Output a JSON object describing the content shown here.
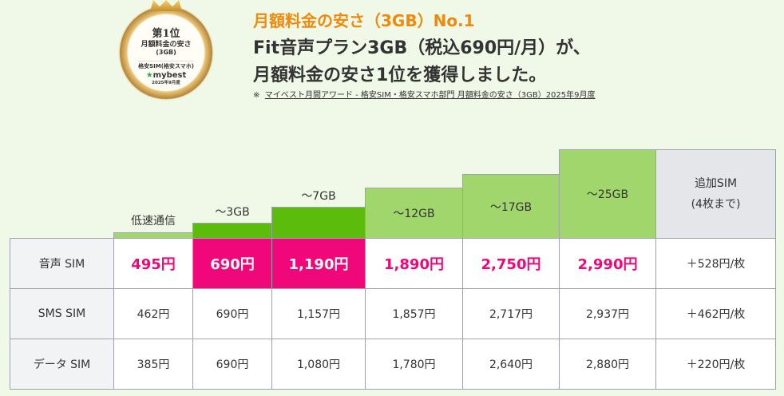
{
  "badge": {
    "rank": "第1位",
    "category": "月額料金の安さ",
    "sub": "(3GB)",
    "genre": "格安SIM(格安スマホ)",
    "brand": "mybest",
    "date": "2025年9月度"
  },
  "headline": {
    "title": "月額料金の安さ（3GB）No.1",
    "line1": "Fit音声プラン3GB（税込690円/月）が、",
    "line2": "月額料金の安さ1位を獲得しました。",
    "note_mark": "※",
    "note_link": "マイベスト月間アワード - 格安SIM・格安スマホ部門 月額料金の安さ（3GB）2025年9月度"
  },
  "columns": [
    "低速通信",
    "〜3GB",
    "〜7GB",
    "〜12GB",
    "〜17GB",
    "〜25GB"
  ],
  "extra_col": {
    "line1": "追加SIM",
    "line2": "(4枚まで)"
  },
  "rows": [
    {
      "label": "音声 SIM",
      "values": [
        "495円",
        "690円",
        "1,190円",
        "1,890円",
        "2,750円",
        "2,990円"
      ],
      "extra": "＋528円/枚"
    },
    {
      "label": "SMS SIM",
      "values": [
        "462円",
        "690円",
        "1,157円",
        "1,857円",
        "2,717円",
        "2,937円"
      ],
      "extra": "＋462円/枚"
    },
    {
      "label": "データ SIM",
      "values": [
        "385円",
        "690円",
        "1,080円",
        "1,780円",
        "2,640円",
        "2,880円"
      ],
      "extra": "＋220円/枚"
    }
  ],
  "colors": {
    "pink": "#f0087a",
    "green_dark": "#5cbc0c",
    "green_light": "#a0d66c",
    "orange": "#ef8a0d"
  }
}
